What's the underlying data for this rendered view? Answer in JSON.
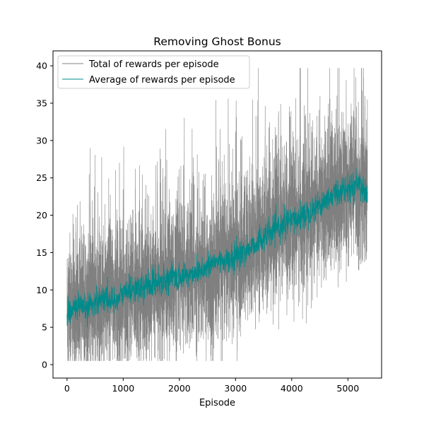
{
  "chart_data": {
    "type": "line",
    "title": "Removing Ghost Bonus",
    "xlabel": "Episode",
    "ylabel": "",
    "xlim": [
      -250,
      5600
    ],
    "ylim": [
      -1.8,
      42
    ],
    "xticks": [
      0,
      1000,
      2000,
      3000,
      4000,
      5000
    ],
    "yticks": [
      0,
      5,
      10,
      15,
      20,
      25,
      30,
      35,
      40
    ],
    "grid": false,
    "legend": "top-left",
    "n_episodes": 5350,
    "series": [
      {
        "name": "Total of rewards per episode",
        "color": "#808080",
        "mean_x": [
          0,
          300,
          600,
          1000,
          1500,
          2000,
          2500,
          3000,
          3500,
          4000,
          4500,
          5000,
          5350
        ],
        "mean_y": [
          7.5,
          7.5,
          8.5,
          9.5,
          10.5,
          11.5,
          12.5,
          14,
          17,
          19,
          21,
          23.5,
          24
        ],
        "noise_sd_approx": 4.8,
        "min_approx": 0.5,
        "max_approx": 39.7
      },
      {
        "name": "Average of rewards per episode",
        "color": "#008b8b",
        "x": [
          0,
          100,
          200,
          300,
          400,
          500,
          600,
          700,
          800,
          900,
          1000,
          1100,
          1200,
          1300,
          1400,
          1500,
          1600,
          1700,
          1800,
          1900,
          2000,
          2100,
          2200,
          2300,
          2400,
          2500,
          2600,
          2700,
          2800,
          2900,
          3000,
          3100,
          3200,
          3300,
          3400,
          3500,
          3600,
          3700,
          3800,
          3900,
          4000,
          4100,
          4200,
          4300,
          4400,
          4500,
          4600,
          4700,
          4800,
          4900,
          5000,
          5100,
          5200,
          5300,
          5350
        ],
        "y": [
          7.0,
          7.5,
          7.8,
          7.2,
          8.0,
          8.5,
          8.8,
          9.0,
          8.5,
          8.8,
          9.5,
          10.0,
          10.3,
          10.0,
          10.5,
          10.8,
          11.0,
          11.3,
          11.5,
          11.8,
          11.5,
          12.0,
          12.0,
          12.5,
          12.8,
          13.0,
          13.5,
          14.0,
          14.0,
          13.8,
          14.5,
          15.0,
          15.3,
          15.8,
          16.5,
          17.0,
          17.5,
          18.0,
          18.5,
          19.0,
          19.2,
          19.5,
          20.0,
          20.5,
          21.0,
          21.5,
          22.0,
          22.5,
          23.0,
          23.5,
          23.5,
          24.0,
          24.5,
          23.0,
          23.5
        ]
      }
    ]
  }
}
